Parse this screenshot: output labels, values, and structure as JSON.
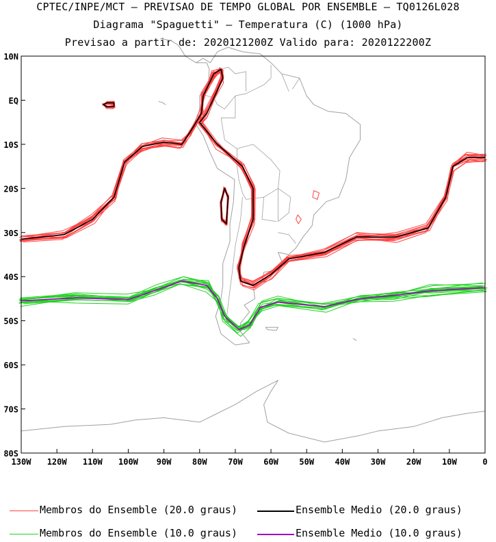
{
  "titles": {
    "line1": "CPTEC/INPE/MCT — PREVISAO DE TEMPO GLOBAL POR ENSEMBLE — TQ0126L028",
    "line2": "Diagrama \"Spaguetti\" — Temperatura (C) (1000 hPa)",
    "line3": "Previsao a partir de: 2020121200Z  Valido para: 2020122200Z"
  },
  "axes": {
    "lat_ticks": [
      "10N",
      "EQ",
      "10S",
      "20S",
      "30S",
      "40S",
      "50S",
      "60S",
      "70S",
      "80S"
    ],
    "lon_ticks": [
      "130W",
      "120W",
      "110W",
      "100W",
      "90W",
      "80W",
      "70W",
      "60W",
      "50W",
      "40W",
      "30W",
      "20W",
      "10W",
      "0"
    ],
    "lat_range": [
      -80,
      10
    ],
    "lon_range": [
      -130,
      0
    ]
  },
  "legend": {
    "members_20": "Membros do Ensemble (20.0 graus)",
    "mean_20": "Ensemble Medio (20.0 graus)",
    "members_10": "Membros do Ensemble (10.0 graus)",
    "mean_10": "Ensemble Medio (10.0 graus)"
  },
  "colors": {
    "members_20": "#ff4040",
    "mean_20": "#000000",
    "members_10": "#20d020",
    "mean_10": "#a000c0",
    "coast": "#a0a0a0"
  },
  "map_data": {
    "mean_20": [
      [
        -130,
        -31.5
      ],
      [
        -118,
        -30.5
      ],
      [
        -110,
        -27
      ],
      [
        -104,
        -22
      ],
      [
        -101,
        -14
      ],
      [
        -96,
        -10.5
      ],
      [
        -90,
        -9.5
      ],
      [
        -85,
        -10
      ],
      [
        -82.5,
        -7
      ],
      [
        -81,
        -5
      ],
      [
        -79.5,
        -3
      ],
      [
        -79,
        1
      ],
      [
        -76,
        6
      ],
      [
        -74,
        7
      ],
      [
        -73.5,
        5
      ],
      [
        -78,
        -3
      ],
      [
        -80,
        -5
      ],
      [
        -75,
        -10
      ],
      [
        -68,
        -15
      ],
      [
        -65,
        -20
      ],
      [
        -65,
        -27
      ],
      [
        -67.5,
        -33
      ],
      [
        -69,
        -38
      ],
      [
        -68.5,
        -41
      ],
      [
        -65,
        -42
      ],
      [
        -60,
        -39.5
      ],
      [
        -55,
        -36
      ],
      [
        -45,
        -34.5
      ],
      [
        -36,
        -31
      ],
      [
        -25,
        -31
      ],
      [
        -16,
        -29
      ],
      [
        -11,
        -22
      ],
      [
        -9,
        -15
      ],
      [
        -5,
        -13
      ],
      [
        0,
        -13
      ]
    ],
    "mean_20_islands": [
      [
        [
          -107,
          -1
        ],
        [
          -106,
          -0.6
        ],
        [
          -104,
          -0.6
        ],
        [
          -104,
          -1.4
        ],
        [
          -106,
          -1.5
        ],
        [
          -107,
          -1
        ]
      ],
      [
        [
          -73,
          -20
        ],
        [
          -72,
          -22
        ],
        [
          -72.5,
          -28
        ],
        [
          -73.8,
          -27
        ],
        [
          -74,
          -23
        ],
        [
          -73,
          -20
        ]
      ]
    ],
    "mean_10": [
      [
        -130,
        -45.5
      ],
      [
        -115,
        -44.8
      ],
      [
        -100,
        -45.2
      ],
      [
        -92,
        -43
      ],
      [
        -85,
        -41
      ],
      [
        -78,
        -42
      ],
      [
        -75,
        -45
      ],
      [
        -73,
        -49
      ],
      [
        -69,
        -52
      ],
      [
        -66,
        -51
      ],
      [
        -63,
        -47
      ],
      [
        -58,
        -45.8
      ],
      [
        -45,
        -46.8
      ],
      [
        -35,
        -45
      ],
      [
        -25,
        -44.2
      ],
      [
        -15,
        -43.2
      ],
      [
        0,
        -42.5
      ]
    ]
  }
}
